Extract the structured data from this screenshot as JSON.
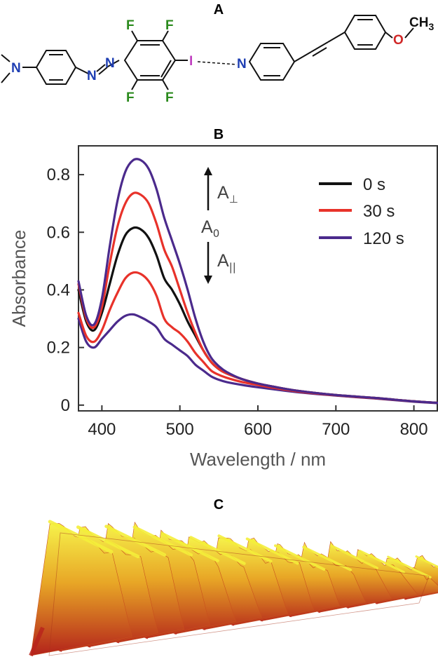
{
  "panels": {
    "a": "A",
    "b": "B",
    "c": "C"
  },
  "molecule": {
    "atoms": {
      "n_amine": "N",
      "n_azo_1": "N",
      "n_azo_2": "N",
      "f1": "F",
      "f2": "F",
      "f3": "F",
      "f4": "F",
      "iodine": "I",
      "n_pyridine": "N",
      "oxygen": "O",
      "methyl": "CH",
      "methyl_sub": "3"
    },
    "colors": {
      "nitrogen": "#1f3fb3",
      "fluorine": "#2a8a1c",
      "iodine": "#c040c0",
      "oxygen": "#d02828",
      "bond": "#111111"
    }
  },
  "chart_data": {
    "type": "line",
    "title": "",
    "xlabel": "Wavelength / nm",
    "ylabel": "Absorbance",
    "xlim": [
      370,
      830
    ],
    "ylim": [
      -0.02,
      0.9
    ],
    "xticks": [
      400,
      500,
      600,
      700,
      800
    ],
    "yticks": [
      0,
      0.2,
      0.4,
      0.6,
      0.8
    ],
    "ytick_labels": [
      "0",
      "0.2",
      "0.4",
      "0.6",
      "0.8"
    ],
    "x": [
      370,
      380,
      390,
      400,
      410,
      420,
      430,
      440,
      450,
      460,
      470,
      480,
      490,
      500,
      510,
      520,
      530,
      540,
      550,
      560,
      580,
      600,
      620,
      650,
      700,
      750,
      800,
      830
    ],
    "series": [
      {
        "name": "0 s",
        "color": "#111111",
        "values": [
          0.4,
          0.29,
          0.26,
          0.32,
          0.42,
          0.52,
          0.59,
          0.615,
          0.61,
          0.58,
          0.52,
          0.44,
          0.4,
          0.35,
          0.29,
          0.24,
          0.19,
          0.15,
          0.125,
          0.11,
          0.09,
          0.075,
          0.064,
          0.05,
          0.035,
          0.025,
          0.013,
          0.008
        ]
      },
      {
        "name": "30 s",
        "color": "#e8322a",
        "values": [
          0.42,
          0.3,
          0.27,
          0.34,
          0.49,
          0.62,
          0.7,
          0.735,
          0.73,
          0.7,
          0.63,
          0.54,
          0.48,
          0.4,
          0.32,
          0.25,
          0.19,
          0.15,
          0.125,
          0.11,
          0.09,
          0.075,
          0.064,
          0.05,
          0.035,
          0.025,
          0.013,
          0.008
        ]
      },
      {
        "name": "120 s",
        "color": "#4b2a8c",
        "values": [
          0.43,
          0.31,
          0.28,
          0.37,
          0.55,
          0.71,
          0.81,
          0.85,
          0.85,
          0.82,
          0.75,
          0.65,
          0.57,
          0.49,
          0.4,
          0.3,
          0.22,
          0.165,
          0.135,
          0.115,
          0.09,
          0.075,
          0.064,
          0.05,
          0.035,
          0.025,
          0.013,
          0.008
        ]
      },
      {
        "name": "30 s (lower)",
        "color": "#e8322a",
        "in_legend": false,
        "values": [
          0.32,
          0.24,
          0.22,
          0.26,
          0.33,
          0.39,
          0.44,
          0.46,
          0.455,
          0.43,
          0.38,
          0.3,
          0.27,
          0.25,
          0.22,
          0.18,
          0.15,
          0.12,
          0.105,
          0.095,
          0.08,
          0.07,
          0.06,
          0.048,
          0.034,
          0.024,
          0.013,
          0.008
        ]
      },
      {
        "name": "120 s (lower)",
        "color": "#4b2a8c",
        "in_legend": false,
        "values": [
          0.3,
          0.22,
          0.2,
          0.23,
          0.26,
          0.29,
          0.31,
          0.315,
          0.305,
          0.29,
          0.27,
          0.23,
          0.21,
          0.19,
          0.17,
          0.14,
          0.12,
          0.1,
          0.088,
          0.08,
          0.07,
          0.062,
          0.055,
          0.045,
          0.033,
          0.023,
          0.012,
          0.007
        ]
      }
    ],
    "legend": {
      "position": "top-right",
      "entries": [
        "0 s",
        "30 s",
        "120 s"
      ]
    },
    "annotations": {
      "a_perp": "A",
      "a_perp_sub": "⊥",
      "a_zero": "A",
      "a_zero_sub": "0",
      "a_par": "A",
      "a_par_sub": "||"
    }
  },
  "surface": {
    "colors": {
      "peak": "#f4ee3a",
      "mid": "#e39a22",
      "valley": "#b8241c"
    },
    "description_hidden": false
  }
}
